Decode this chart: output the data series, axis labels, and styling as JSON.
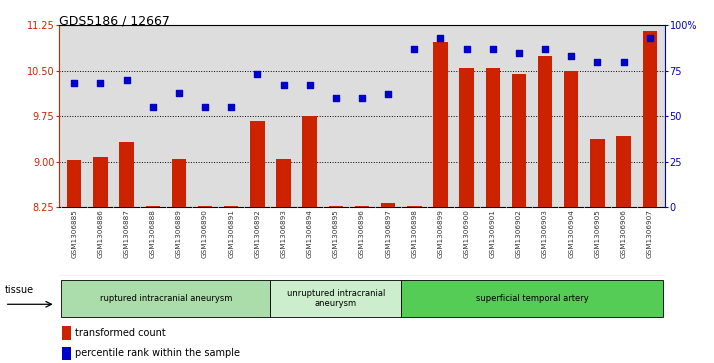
{
  "title": "GDS5186 / 12667",
  "samples": [
    "GSM1306885",
    "GSM1306886",
    "GSM1306887",
    "GSM1306888",
    "GSM1306889",
    "GSM1306890",
    "GSM1306891",
    "GSM1306892",
    "GSM1306893",
    "GSM1306894",
    "GSM1306895",
    "GSM1306896",
    "GSM1306897",
    "GSM1306898",
    "GSM1306899",
    "GSM1306900",
    "GSM1306901",
    "GSM1306902",
    "GSM1306903",
    "GSM1306904",
    "GSM1306905",
    "GSM1306906",
    "GSM1306907"
  ],
  "transformed_count": [
    9.02,
    9.08,
    9.32,
    8.27,
    9.05,
    8.27,
    8.27,
    9.67,
    9.05,
    9.75,
    8.27,
    8.27,
    8.32,
    8.27,
    10.98,
    10.55,
    10.55,
    10.45,
    10.75,
    10.5,
    9.38,
    9.42,
    11.15
  ],
  "percentile_rank": [
    68,
    68,
    70,
    55,
    63,
    55,
    55,
    73,
    67,
    67,
    60,
    60,
    62,
    87,
    93,
    87,
    87,
    85,
    87,
    83,
    80,
    80,
    93
  ],
  "ylim_left": [
    8.25,
    11.25
  ],
  "ylim_right": [
    0,
    100
  ],
  "yticks_left": [
    8.25,
    9.0,
    9.75,
    10.5,
    11.25
  ],
  "yticks_right": [
    0,
    25,
    50,
    75,
    100
  ],
  "ytick_labels_right": [
    "0",
    "25",
    "50",
    "75",
    "100%"
  ],
  "bar_color": "#cc2200",
  "dot_color": "#0000cc",
  "bar_bottom": 8.25,
  "groups": [
    {
      "label": "ruptured intracranial aneurysm",
      "start": 0,
      "end": 8,
      "color": "#aaddaa"
    },
    {
      "label": "unruptured intracranial\naneurysm",
      "start": 8,
      "end": 13,
      "color": "#cceecc"
    },
    {
      "label": "superficial temporal artery",
      "start": 13,
      "end": 23,
      "color": "#55cc55"
    }
  ],
  "tissue_label": "tissue",
  "legend_bar_label": "transformed count",
  "legend_dot_label": "percentile rank within the sample",
  "plot_bg": "#dddddd",
  "xlim": [
    -0.6,
    22.6
  ]
}
